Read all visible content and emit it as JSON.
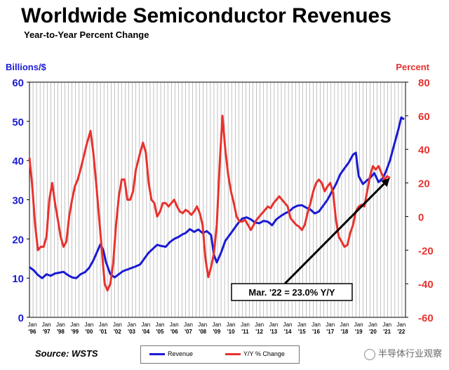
{
  "header": {
    "title": "Worldwide Semiconductor Revenues",
    "subtitle": "Year-to-Year Percent Change"
  },
  "footer": {
    "source": "Source: WSTS",
    "watermark": "半导体行业观察"
  },
  "colors": {
    "revenue": "#1a1ad4",
    "change": "#e8322e",
    "grid": "#999999"
  },
  "chart_data": {
    "type": "line",
    "title": "Worldwide Semiconductor Revenues",
    "subtitle": "Year-to-Year Percent Change",
    "ylabel_left": "Billions/$",
    "ylabel_right": "Percent",
    "ylim_left": [
      0,
      60
    ],
    "ylim_right": [
      -60,
      80
    ],
    "yticks_left": [
      0,
      10,
      20,
      30,
      40,
      50,
      60
    ],
    "yticks_right": [
      -60,
      -40,
      -20,
      0,
      20,
      40,
      60,
      80
    ],
    "x_tick_top": "Jan",
    "x_ticks": [
      "'96",
      "'97",
      "'98",
      "'99",
      "'00",
      "'01",
      "'02",
      "'03",
      "'04",
      "'05",
      "'06",
      "'07",
      "'08",
      "'09",
      "'10",
      "'11",
      "'12",
      "'13",
      "'14",
      "'15",
      "'16",
      "'17",
      "'18",
      "'19",
      "'20",
      "'21",
      "'22"
    ],
    "grid": true,
    "legend_position": "bottom-center",
    "series": [
      {
        "name": "Revenue",
        "axis": "left",
        "points": [
          [
            1996.0,
            12.8
          ],
          [
            1996.3,
            12.0
          ],
          [
            1996.6,
            10.8
          ],
          [
            1996.9,
            10.0
          ],
          [
            1997.2,
            11.0
          ],
          [
            1997.5,
            10.6
          ],
          [
            1997.8,
            11.2
          ],
          [
            1998.1,
            11.4
          ],
          [
            1998.4,
            11.6
          ],
          [
            1998.7,
            10.8
          ],
          [
            1999.0,
            10.2
          ],
          [
            1999.3,
            10.0
          ],
          [
            1999.6,
            11.0
          ],
          [
            1999.9,
            11.5
          ],
          [
            2000.2,
            12.6
          ],
          [
            2000.5,
            14.5
          ],
          [
            2000.8,
            17.0
          ],
          [
            2001.0,
            18.6
          ],
          [
            2001.2,
            17.2
          ],
          [
            2001.4,
            14.0
          ],
          [
            2001.7,
            11.0
          ],
          [
            2002.0,
            10.2
          ],
          [
            2002.3,
            11.0
          ],
          [
            2002.6,
            11.8
          ],
          [
            2002.9,
            12.2
          ],
          [
            2003.2,
            12.6
          ],
          [
            2003.5,
            13.0
          ],
          [
            2003.8,
            13.5
          ],
          [
            2004.1,
            15.0
          ],
          [
            2004.4,
            16.5
          ],
          [
            2004.7,
            17.5
          ],
          [
            2005.0,
            18.5
          ],
          [
            2005.3,
            18.2
          ],
          [
            2005.6,
            18.0
          ],
          [
            2005.9,
            19.2
          ],
          [
            2006.2,
            20.0
          ],
          [
            2006.5,
            20.5
          ],
          [
            2006.8,
            21.2
          ],
          [
            2007.0,
            21.5
          ],
          [
            2007.3,
            22.5
          ],
          [
            2007.6,
            21.8
          ],
          [
            2007.9,
            22.4
          ],
          [
            2008.2,
            21.5
          ],
          [
            2008.5,
            22.0
          ],
          [
            2008.8,
            21.0
          ],
          [
            2009.0,
            16.0
          ],
          [
            2009.2,
            14.0
          ],
          [
            2009.5,
            16.5
          ],
          [
            2009.8,
            19.5
          ],
          [
            2010.1,
            21.0
          ],
          [
            2010.4,
            22.5
          ],
          [
            2010.7,
            24.0
          ],
          [
            2011.0,
            25.2
          ],
          [
            2011.3,
            25.5
          ],
          [
            2011.6,
            25.0
          ],
          [
            2011.9,
            24.2
          ],
          [
            2012.2,
            24.0
          ],
          [
            2012.5,
            24.6
          ],
          [
            2012.8,
            24.4
          ],
          [
            2013.1,
            23.5
          ],
          [
            2013.4,
            25.0
          ],
          [
            2013.7,
            25.8
          ],
          [
            2014.0,
            26.5
          ],
          [
            2014.3,
            27.0
          ],
          [
            2014.6,
            28.0
          ],
          [
            2014.9,
            28.5
          ],
          [
            2015.2,
            28.6
          ],
          [
            2015.5,
            28.0
          ],
          [
            2015.8,
            27.5
          ],
          [
            2016.1,
            26.5
          ],
          [
            2016.4,
            27.0
          ],
          [
            2016.7,
            28.5
          ],
          [
            2017.0,
            30.0
          ],
          [
            2017.3,
            32.0
          ],
          [
            2017.6,
            34.0
          ],
          [
            2017.9,
            36.5
          ],
          [
            2018.2,
            38.0
          ],
          [
            2018.5,
            39.5
          ],
          [
            2018.8,
            41.5
          ],
          [
            2019.0,
            42.0
          ],
          [
            2019.2,
            36.0
          ],
          [
            2019.5,
            34.0
          ],
          [
            2019.8,
            35.0
          ],
          [
            2020.0,
            35.5
          ],
          [
            2020.3,
            36.8
          ],
          [
            2020.6,
            34.5
          ],
          [
            2020.9,
            35.5
          ],
          [
            2021.1,
            37.0
          ],
          [
            2021.4,
            40.0
          ],
          [
            2021.7,
            44.0
          ],
          [
            2022.0,
            48.0
          ],
          [
            2022.2,
            51.0
          ],
          [
            2022.4,
            50.5
          ]
        ]
      },
      {
        "name": "Y/Y % Change",
        "axis": "right",
        "points": [
          [
            1996.0,
            35
          ],
          [
            1996.2,
            18
          ],
          [
            1996.4,
            -5
          ],
          [
            1996.6,
            -20
          ],
          [
            1996.8,
            -18
          ],
          [
            1997.0,
            -18
          ],
          [
            1997.2,
            -12
          ],
          [
            1997.4,
            10
          ],
          [
            1997.6,
            20
          ],
          [
            1997.8,
            8
          ],
          [
            1998.0,
            -2
          ],
          [
            1998.2,
            -12
          ],
          [
            1998.4,
            -18
          ],
          [
            1998.6,
            -15
          ],
          [
            1998.8,
            0
          ],
          [
            1999.0,
            10
          ],
          [
            1999.2,
            18
          ],
          [
            1999.4,
            22
          ],
          [
            1999.6,
            28
          ],
          [
            1999.8,
            35
          ],
          [
            2000.0,
            42
          ],
          [
            2000.3,
            51
          ],
          [
            2000.5,
            38
          ],
          [
            2000.7,
            20
          ],
          [
            2000.9,
            0
          ],
          [
            2001.1,
            -20
          ],
          [
            2001.3,
            -40
          ],
          [
            2001.5,
            -44
          ],
          [
            2001.7,
            -40
          ],
          [
            2001.9,
            -28
          ],
          [
            2002.1,
            -5
          ],
          [
            2002.3,
            12
          ],
          [
            2002.5,
            22
          ],
          [
            2002.7,
            22
          ],
          [
            2002.9,
            10
          ],
          [
            2003.1,
            10
          ],
          [
            2003.3,
            15
          ],
          [
            2003.5,
            28
          ],
          [
            2003.8,
            38
          ],
          [
            2004.0,
            44
          ],
          [
            2004.2,
            38
          ],
          [
            2004.4,
            20
          ],
          [
            2004.6,
            10
          ],
          [
            2004.8,
            8
          ],
          [
            2005.0,
            0
          ],
          [
            2005.2,
            3
          ],
          [
            2005.4,
            8
          ],
          [
            2005.6,
            8
          ],
          [
            2005.8,
            6
          ],
          [
            2006.0,
            8
          ],
          [
            2006.2,
            10
          ],
          [
            2006.4,
            6
          ],
          [
            2006.6,
            3
          ],
          [
            2006.8,
            2
          ],
          [
            2007.0,
            4
          ],
          [
            2007.2,
            3
          ],
          [
            2007.4,
            1
          ],
          [
            2007.6,
            3
          ],
          [
            2007.8,
            6
          ],
          [
            2008.0,
            2
          ],
          [
            2008.2,
            -5
          ],
          [
            2008.4,
            -25
          ],
          [
            2008.6,
            -36
          ],
          [
            2008.8,
            -30
          ],
          [
            2009.0,
            -22
          ],
          [
            2009.2,
            -5
          ],
          [
            2009.4,
            30
          ],
          [
            2009.6,
            60
          ],
          [
            2009.8,
            40
          ],
          [
            2010.0,
            25
          ],
          [
            2010.2,
            15
          ],
          [
            2010.4,
            8
          ],
          [
            2010.6,
            0
          ],
          [
            2010.8,
            -3
          ],
          [
            2011.0,
            -3
          ],
          [
            2011.2,
            -2
          ],
          [
            2011.4,
            -5
          ],
          [
            2011.6,
            -8
          ],
          [
            2011.8,
            -5
          ],
          [
            2012.0,
            -2
          ],
          [
            2012.2,
            0
          ],
          [
            2012.4,
            2
          ],
          [
            2012.6,
            4
          ],
          [
            2012.8,
            6
          ],
          [
            2013.0,
            5
          ],
          [
            2013.2,
            8
          ],
          [
            2013.4,
            10
          ],
          [
            2013.6,
            12
          ],
          [
            2013.8,
            10
          ],
          [
            2014.0,
            8
          ],
          [
            2014.2,
            6
          ],
          [
            2014.4,
            -1
          ],
          [
            2014.6,
            -3
          ],
          [
            2014.8,
            -5
          ],
          [
            2015.0,
            -6
          ],
          [
            2015.2,
            -8
          ],
          [
            2015.4,
            -5
          ],
          [
            2015.6,
            2
          ],
          [
            2015.8,
            8
          ],
          [
            2016.0,
            15
          ],
          [
            2016.2,
            20
          ],
          [
            2016.4,
            22
          ],
          [
            2016.6,
            20
          ],
          [
            2016.8,
            15
          ],
          [
            2017.0,
            18
          ],
          [
            2017.2,
            20
          ],
          [
            2017.4,
            14
          ],
          [
            2017.6,
            -2
          ],
          [
            2017.8,
            -12
          ],
          [
            2018.0,
            -15
          ],
          [
            2018.2,
            -18
          ],
          [
            2018.4,
            -17
          ],
          [
            2018.6,
            -10
          ],
          [
            2018.8,
            -5
          ],
          [
            2019.0,
            3
          ],
          [
            2019.2,
            6
          ],
          [
            2019.4,
            7
          ],
          [
            2019.6,
            6
          ],
          [
            2019.8,
            15
          ],
          [
            2020.0,
            24
          ],
          [
            2020.2,
            30
          ],
          [
            2020.4,
            28
          ],
          [
            2020.6,
            30
          ],
          [
            2020.8,
            26
          ],
          [
            2021.0,
            22
          ],
          [
            2021.2,
            24
          ],
          [
            2021.4,
            23
          ]
        ]
      }
    ],
    "annotation": "Mar. '22 = 23.0% Y/Y"
  }
}
